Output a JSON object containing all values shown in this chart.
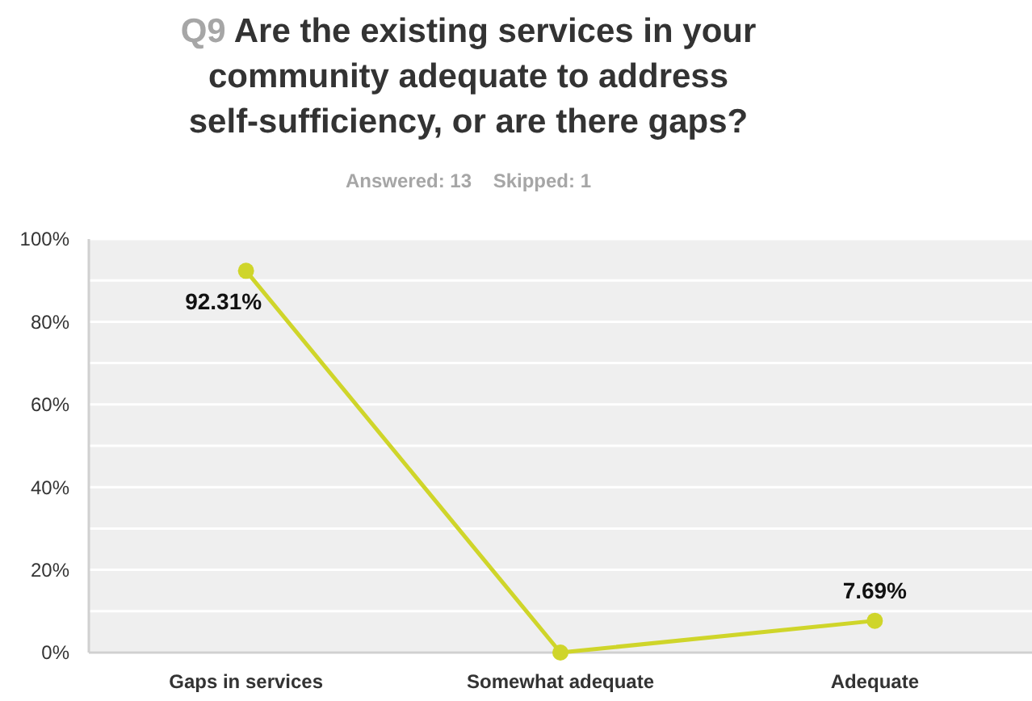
{
  "chart_data": {
    "type": "line",
    "title": "Q9 Are the existing services in your community adequate to address self-sufficiency, or are there gaps?",
    "subtitle": "Answered: 13    Skipped: 1",
    "categories": [
      "Gaps in services",
      "Somewhat adequate",
      "Adequate"
    ],
    "series": [
      {
        "color": "#cfd52a",
        "values": [
          92.31,
          0,
          7.69
        ],
        "value_labels": [
          "92.31%",
          null,
          "7.69%"
        ]
      }
    ],
    "ylim": [
      0,
      100
    ],
    "yticks": [
      {
        "value": 0,
        "label": "0%"
      },
      {
        "value": 10,
        "label": null
      },
      {
        "value": 20,
        "label": "20%"
      },
      {
        "value": 30,
        "label": null
      },
      {
        "value": 40,
        "label": "40%"
      },
      {
        "value": 50,
        "label": null
      },
      {
        "value": 60,
        "label": "60%"
      },
      {
        "value": 70,
        "label": null
      },
      {
        "value": 80,
        "label": "80%"
      },
      {
        "value": 90,
        "label": null
      },
      {
        "value": 100,
        "label": "100%"
      }
    ],
    "grid": "y",
    "marker": "circle",
    "line_style": "solid"
  }
}
